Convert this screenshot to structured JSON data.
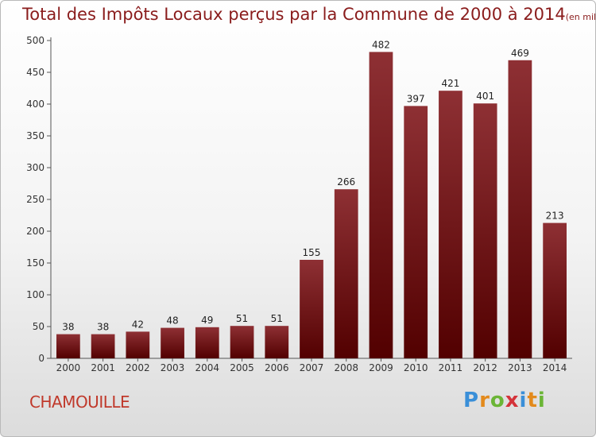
{
  "header": {
    "title": "Total des Impôts Locaux perçus par la Commune de 2000 à 2014",
    "unit": "(en milliers d'€)"
  },
  "commune": "CHAMOUILLE",
  "logo": {
    "letters": [
      "P",
      "r",
      "o",
      "x",
      "i",
      "t",
      "i"
    ],
    "colors": [
      "#3a8fd8",
      "#e38a1c",
      "#6bb536",
      "#d4333a",
      "#3a8fd8",
      "#e38a1c",
      "#6bb536"
    ]
  },
  "chart_data": {
    "type": "bar",
    "title": "Total des Impôts Locaux perçus par la Commune de 2000 à 2014",
    "xlabel": "",
    "ylabel": "",
    "categories": [
      "2000",
      "2001",
      "2002",
      "2003",
      "2004",
      "2005",
      "2006",
      "2007",
      "2008",
      "2009",
      "2010",
      "2011",
      "2012",
      "2013",
      "2014"
    ],
    "values": [
      38,
      38,
      42,
      48,
      49,
      51,
      51,
      155,
      266,
      482,
      397,
      421,
      401,
      469,
      213
    ],
    "ylim": [
      0,
      500
    ],
    "yticks": [
      0,
      50,
      100,
      150,
      200,
      250,
      300,
      350,
      400,
      450,
      500
    ],
    "grid": false,
    "bar_color": "#8b2525"
  }
}
